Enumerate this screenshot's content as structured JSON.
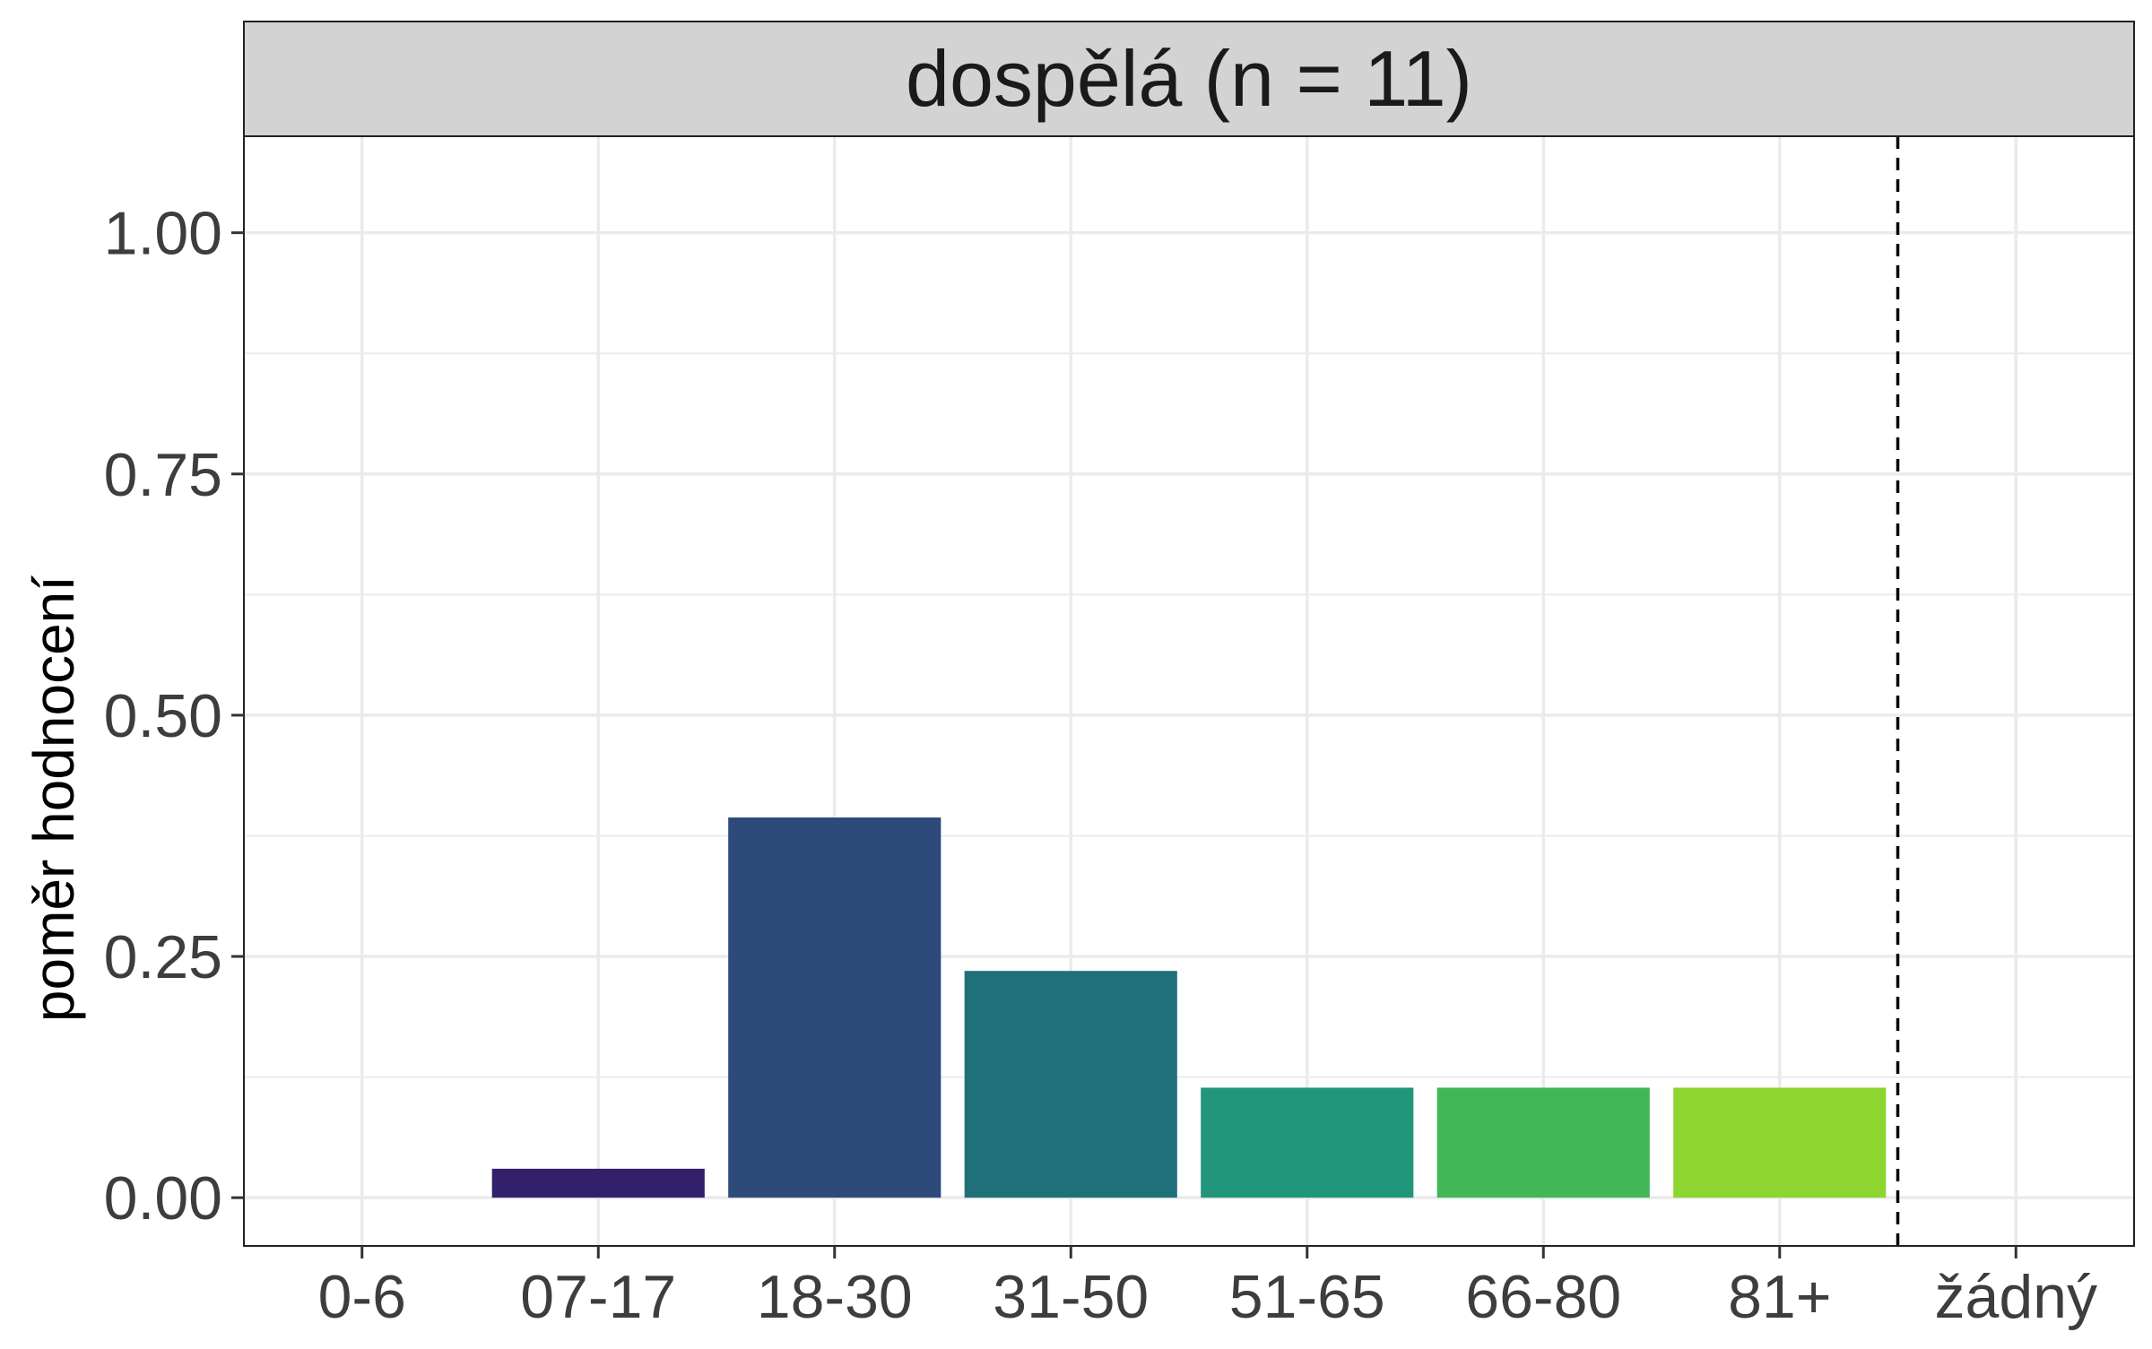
{
  "chart_data": {
    "type": "bar",
    "title": "dospělá (n = 11)",
    "ylabel": "poměr hodnocení",
    "xlabel": "",
    "categories": [
      "0-6",
      "07-17",
      "18-30",
      "31-50",
      "51-65",
      "66-80",
      "81+",
      "žádný"
    ],
    "values": [
      0,
      0.03,
      0.394,
      0.235,
      0.114,
      0.114,
      0.114,
      0
    ],
    "bar_colors": [
      "#440154",
      "#33206B",
      "#2D4A7A",
      "#20707A",
      "#22967A",
      "#42B757",
      "#8DD52F",
      "#FDE725"
    ],
    "ylim": [
      -0.05,
      1.1
    ],
    "y_ticks": [
      0,
      0.25,
      0.5,
      0.75,
      1.0
    ],
    "y_tick_labels": [
      "0.00",
      "0.25",
      "0.50",
      "0.75",
      "1.00"
    ],
    "y_minor_ticks": [
      0.125,
      0.375,
      0.625,
      0.875
    ],
    "reference_line": {
      "between": [
        "81+",
        "žádný"
      ],
      "style": "dashed",
      "color": "#000000"
    },
    "grid": true,
    "strip_color": "#D3D3D3",
    "panel_border_color": "#222222",
    "gridline_color": "#EBEBEB",
    "tick_label_color": "#3D3D3D"
  }
}
